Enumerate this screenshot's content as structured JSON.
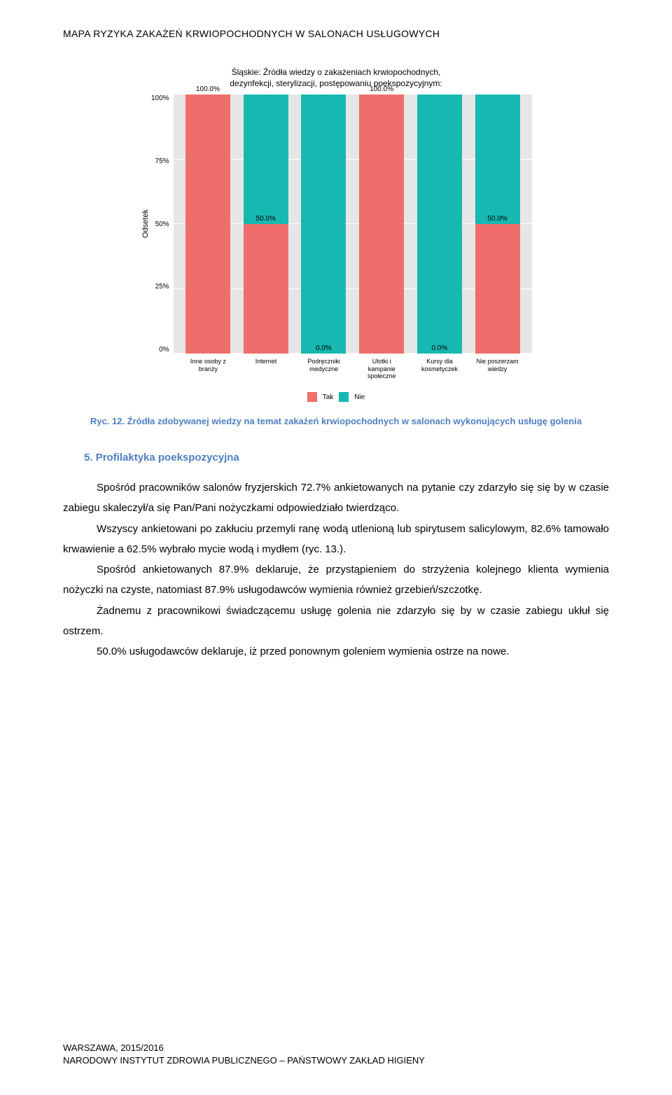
{
  "header": "MAPA RYZYKA ZAKAŻEŃ KRWIOPOCHODNYCH W SALONACH USŁUGOWYCH",
  "chart": {
    "title_l1": "Śląskie: Źródła wiedzy o zakażeniach krwiopochodnych,",
    "title_l2": "dezynfekcji, sterylizacji, postępowaniu poekspozycyjnym:",
    "ylabel": "Odsetek",
    "yticks": [
      "100%",
      "75%",
      "50%",
      "25%",
      "0%"
    ],
    "grid_positions_pct": [
      0,
      25,
      50,
      75,
      100
    ],
    "background_color": "#e6e6e6",
    "grid_color": "#ffffff",
    "colors": {
      "tak": "#ef6e6c",
      "nie": "#17b8b1"
    },
    "legend": {
      "tak": "Tak",
      "nie": "Nie"
    },
    "categories": [
      {
        "label": "Inne osoby z branży",
        "tak": 100.0,
        "nie": 0.0,
        "show_value": "100.0%",
        "value_from_bottom_pct": 100
      },
      {
        "label": "Internet",
        "tak": 50.0,
        "nie": 50.0,
        "show_value": "50.0%",
        "value_from_bottom_pct": 50
      },
      {
        "label": "Podręczniki medyczne",
        "tak": 0.0,
        "nie": 100.0,
        "show_value": "0.0%",
        "value_from_bottom_pct": 0
      },
      {
        "label": "Ulotki i kampanie społeczne",
        "tak": 100.0,
        "nie": 0.0,
        "show_value": "100.0%",
        "value_from_bottom_pct": 100
      },
      {
        "label": "Kursy dla kosmetyczek",
        "tak": 0.0,
        "nie": 100.0,
        "show_value": "0.0%",
        "value_from_bottom_pct": 0
      },
      {
        "label": "Nie poszerzam wiedzy",
        "tak": 50.0,
        "nie": 50.0,
        "show_value": "50.0%",
        "value_from_bottom_pct": 50
      }
    ]
  },
  "caption": "Ryc. 12. Źródła zdobywanej wiedzy na temat zakażeń krwiopochodnych w salonach wykonujących usługę golenia",
  "section": {
    "number": "5.",
    "title": "Profilaktyka poekspozycyjna"
  },
  "paragraphs": {
    "p1": "Spośród pracowników salonów fryzjerskich 72.7% ankietowanych na pytanie czy zdarzyło się się by w czasie zabiegu skaleczył/a się Pan/Pani nożyczkami odpowiedziało twierdząco.",
    "p2": "Wszyscy ankietowani po zakłuciu przemyli ranę wodą utlenioną lub spirytusem salicylowym, 82.6% tamowało krwawienie a 62.5% wybrało mycie wodą i mydłem (ryc. 13.).",
    "p3": "Spośród ankietowanych 87.9% deklaruje, że przystąpieniem do strzyżenia kolejnego klienta wymienia nożyczki na czyste, natomiast 87.9% usługodawców wymienia również grzebień/szczotkę.",
    "p4": "Żadnemu z pracownikowi świadczącemu usługę golenia nie zdarzyło się by w czasie zabiegu ukłuł się ostrzem.",
    "p5": "50.0% usługodawców deklaruje, iż przed ponownym goleniem wymienia ostrze na nowe."
  },
  "footer": {
    "l1": "WARSZAWA, 2015/2016",
    "l2": "NARODOWY INSTYTUT ZDROWIA PUBLICZNEGO – PAŃSTWOWY ZAKŁAD HIGIENY"
  }
}
